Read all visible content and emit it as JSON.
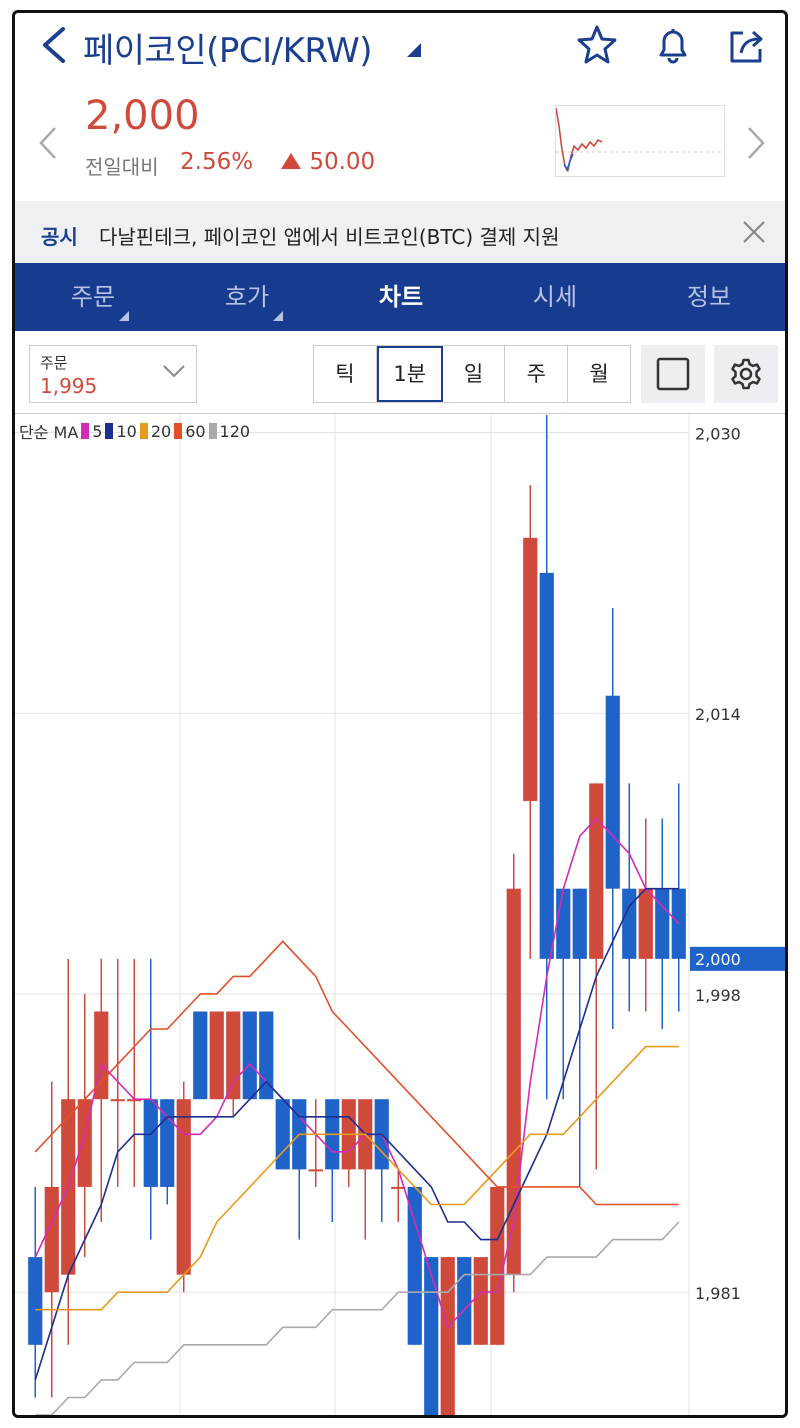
{
  "header": {
    "title": "페이코인(PCI/KRW)",
    "icons": [
      "back-icon",
      "caret-down-icon",
      "star-icon",
      "bell-icon",
      "share-icon"
    ]
  },
  "price": {
    "current": "2,000",
    "change_label": "전일대비",
    "change_pct": "2.56%",
    "change_amount": "50.00",
    "color_up": "#d04a3c"
  },
  "notice": {
    "tag": "공시",
    "text": "다날핀테크, 페이코인 앱에서 비트코인(BTC) 결제 지원"
  },
  "tabs": [
    {
      "label": "주문",
      "active": false,
      "dropdown": true
    },
    {
      "label": "호가",
      "active": false,
      "dropdown": true
    },
    {
      "label": "차트",
      "active": true,
      "dropdown": false
    },
    {
      "label": "시세",
      "active": false,
      "dropdown": false
    },
    {
      "label": "정보",
      "active": false,
      "dropdown": false
    }
  ],
  "toolbar": {
    "order_label": "주문",
    "order_value": "1,995",
    "periods": [
      {
        "label": "틱",
        "active": false
      },
      {
        "label": "1분",
        "active": true
      },
      {
        "label": "일",
        "active": false
      },
      {
        "label": "주",
        "active": false
      },
      {
        "label": "월",
        "active": false
      }
    ]
  },
  "legend": {
    "prefix": "단순 MA",
    "items": [
      {
        "label": "5",
        "color": "#d62bb5"
      },
      {
        "label": "10",
        "color": "#1b2f8f"
      },
      {
        "label": "20",
        "color": "#e79a1b"
      },
      {
        "label": "60",
        "color": "#e2502a"
      },
      {
        "label": "120",
        "color": "#aaaaaa"
      }
    ]
  },
  "colors": {
    "brand": "#163b8f",
    "up": "#d04a3c",
    "down": "#1f63c9",
    "price_tag_bg": "#1f63c9"
  },
  "chart_data": {
    "type": "candlestick",
    "ylim": [
      1974,
      2031
    ],
    "y_ticks": [
      2030,
      2014,
      1998,
      1981
    ],
    "current_price_label": "2,000",
    "current_price": 2000,
    "candles": [
      {
        "o": 1983,
        "h": 1987,
        "l": 1975,
        "c": 1978
      },
      {
        "o": 1981,
        "h": 1993,
        "l": 1975,
        "c": 1987
      },
      {
        "o": 1982,
        "h": 2000,
        "l": 1978,
        "c": 1992
      },
      {
        "o": 1987,
        "h": 1998,
        "l": 1983,
        "c": 1992
      },
      {
        "o": 1992,
        "h": 2000,
        "l": 1985,
        "c": 1997
      },
      {
        "o": 1992,
        "h": 2000,
        "l": 1987,
        "c": 1992
      },
      {
        "o": 1992,
        "h": 2000,
        "l": 1987,
        "c": 1992
      },
      {
        "o": 1992,
        "h": 2000,
        "l": 1984,
        "c": 1987
      },
      {
        "o": 1992,
        "h": 1992,
        "l": 1986,
        "c": 1987
      },
      {
        "o": 1982,
        "h": 1993,
        "l": 1981,
        "c": 1992
      },
      {
        "o": 1997,
        "h": 1997,
        "l": 1992,
        "c": 1992
      },
      {
        "o": 1992,
        "h": 1997,
        "l": 1992,
        "c": 1997
      },
      {
        "o": 1992,
        "h": 1997,
        "l": 1991,
        "c": 1997
      },
      {
        "o": 1997,
        "h": 1997,
        "l": 1992,
        "c": 1992
      },
      {
        "o": 1997,
        "h": 1997,
        "l": 1992,
        "c": 1992
      },
      {
        "o": 1992,
        "h": 1992,
        "l": 1988,
        "c": 1988
      },
      {
        "o": 1992,
        "h": 1992,
        "l": 1984,
        "c": 1988
      },
      {
        "o": 1988,
        "h": 1992,
        "l": 1987,
        "c": 1988
      },
      {
        "o": 1992,
        "h": 1992,
        "l": 1985,
        "c": 1988
      },
      {
        "o": 1988,
        "h": 1992,
        "l": 1987,
        "c": 1992
      },
      {
        "o": 1988,
        "h": 1992,
        "l": 1984,
        "c": 1992
      },
      {
        "o": 1992,
        "h": 1992,
        "l": 1985,
        "c": 1988
      },
      {
        "o": 1987,
        "h": 1988,
        "l": 1985,
        "c": 1987
      },
      {
        "o": 1987,
        "h": 1987,
        "l": 1978,
        "c": 1978
      },
      {
        "o": 1983,
        "h": 1983,
        "l": 1974,
        "c": 1974
      },
      {
        "o": 1974,
        "h": 1983,
        "l": 1974,
        "c": 1983
      },
      {
        "o": 1983,
        "h": 1983,
        "l": 1978,
        "c": 1978
      },
      {
        "o": 1978,
        "h": 1983,
        "l": 1978,
        "c": 1983
      },
      {
        "o": 1978,
        "h": 1987,
        "l": 1978,
        "c": 1987
      },
      {
        "o": 1982,
        "h": 2006,
        "l": 1981,
        "c": 2004
      },
      {
        "o": 2009,
        "h": 2027,
        "l": 2000,
        "c": 2024
      },
      {
        "o": 2022,
        "h": 2031,
        "l": 1992,
        "c": 2000
      },
      {
        "o": 2004,
        "h": 2004,
        "l": 1992,
        "c": 2000
      },
      {
        "o": 2004,
        "h": 2004,
        "l": 1987,
        "c": 2000
      },
      {
        "o": 2000,
        "h": 2010,
        "l": 1988,
        "c": 2010
      },
      {
        "o": 2015,
        "h": 2020,
        "l": 1996,
        "c": 2004
      },
      {
        "o": 2004,
        "h": 2010,
        "l": 1997,
        "c": 2000
      },
      {
        "o": 2000,
        "h": 2008,
        "l": 1997,
        "c": 2004
      },
      {
        "o": 2004,
        "h": 2008,
        "l": 1996,
        "c": 2000
      },
      {
        "o": 2004,
        "h": 2010,
        "l": 1997,
        "c": 2000
      }
    ],
    "ma": {
      "5": [
        1983,
        1985,
        1987,
        1990,
        1994,
        1993,
        1992,
        1992,
        1991,
        1990,
        1990,
        1991,
        1993,
        1994,
        1993,
        1992,
        1991,
        1990,
        1989,
        1989,
        1990,
        1990,
        1988,
        1985,
        1982,
        1979,
        1980,
        1981,
        1981,
        1985,
        1993,
        1999,
        2004,
        2007,
        2008,
        2007,
        2006,
        2004,
        2003,
        2002
      ],
      "10": [
        1976,
        1979,
        1982,
        1984,
        1986,
        1989,
        1990,
        1990,
        1991,
        1991,
        1991,
        1991,
        1991,
        1992,
        1993,
        1992,
        1991,
        1991,
        1991,
        1991,
        1990,
        1990,
        1989,
        1988,
        1987,
        1985,
        1985,
        1984,
        1984,
        1986,
        1988,
        1990,
        1993,
        1996,
        1999,
        2001,
        2003,
        2004,
        2004,
        2004
      ],
      "20": [
        1980,
        1980,
        1980,
        1980,
        1980,
        1981,
        1981,
        1981,
        1981,
        1982,
        1983,
        1985,
        1986,
        1987,
        1988,
        1989,
        1990,
        1990,
        1990,
        1990,
        1990,
        1989,
        1988,
        1987,
        1986,
        1986,
        1986,
        1987,
        1988,
        1989,
        1990,
        1990,
        1990,
        1991,
        1992,
        1993,
        1994,
        1995,
        1995,
        1995
      ],
      "60": [
        1989,
        1990,
        1991,
        1992,
        1993,
        1994,
        1995,
        1996,
        1996,
        1997,
        1998,
        1998,
        1999,
        1999,
        2000,
        2001,
        2000,
        1999,
        1997,
        1996,
        1995,
        1994,
        1993,
        1992,
        1991,
        1990,
        1989,
        1988,
        1987,
        1987,
        1987,
        1987,
        1987,
        1987,
        1986,
        1986,
        1986,
        1986,
        1986,
        1986
      ],
      "120": [
        1974,
        1974,
        1975,
        1975,
        1976,
        1976,
        1977,
        1977,
        1977,
        1978,
        1978,
        1978,
        1978,
        1978,
        1978,
        1979,
        1979,
        1979,
        1980,
        1980,
        1980,
        1980,
        1981,
        1981,
        1981,
        1981,
        1982,
        1982,
        1982,
        1982,
        1982,
        1983,
        1983,
        1983,
        1983,
        1984,
        1984,
        1984,
        1984,
        1985
      ]
    }
  }
}
